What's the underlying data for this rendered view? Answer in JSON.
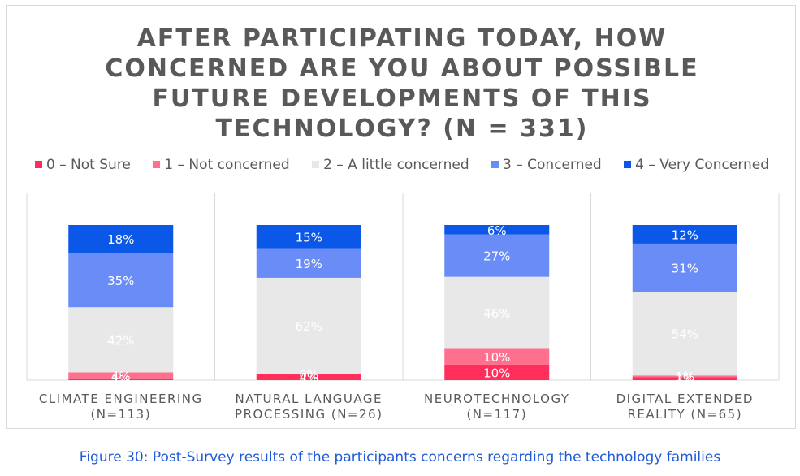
{
  "chart_data": {
    "type": "bar",
    "stacked": true,
    "normalized": true,
    "title_lines": [
      "AFTER PARTICIPATING TODAY, HOW",
      "CONCERNED ARE YOU ABOUT POSSIBLE",
      "FUTURE DEVELOPMENTS OF THIS",
      "TECHNOLOGY? (N = 331)"
    ],
    "legend_position": "top",
    "grid": false,
    "categories": [
      [
        "CLIMATE ENGINEERING",
        "(N=113)"
      ],
      [
        "NATURAL LANGUAGE",
        "PROCESSING (N=26)"
      ],
      [
        "NEUROTECHNOLOGY",
        "(N=117)"
      ],
      [
        "DIGITAL EXTENDED",
        "REALITY (N=65)"
      ]
    ],
    "series": [
      {
        "name": "0 – Not Sure",
        "color": "#ff2e5b",
        "label_color": "#ffffff",
        "values": [
          1,
          4,
          10,
          2
        ],
        "labels": [
          "1%",
          "4%",
          "10%",
          "2%"
        ]
      },
      {
        "name": "1 – Not concerned",
        "color": "#ff6f8e",
        "label_color": "#ffffff",
        "values": [
          4,
          0,
          10,
          1
        ],
        "labels": [
          "4%",
          "0%",
          "10%",
          "1%"
        ]
      },
      {
        "name": "2 – A little concerned",
        "color": "#e8e8e8",
        "label_color": "#ffffff",
        "values": [
          42,
          62,
          46,
          54
        ],
        "labels": [
          "42%",
          "62%",
          "46%",
          "54%"
        ]
      },
      {
        "name": "3 – Concerned",
        "color": "#6a8cf7",
        "label_color": "#ffffff",
        "values": [
          35,
          19,
          27,
          31
        ],
        "labels": [
          "35%",
          "19%",
          "27%",
          "31%"
        ]
      },
      {
        "name": "4 – Very Concerned",
        "color": "#0b57e8",
        "label_color": "#ffffff",
        "values": [
          18,
          15,
          6,
          12
        ],
        "labels": [
          "18%",
          "15%",
          "6%",
          "12%"
        ]
      }
    ]
  },
  "caption": "Figure 30: Post-Survey results of the participants concerns regarding the technology families"
}
